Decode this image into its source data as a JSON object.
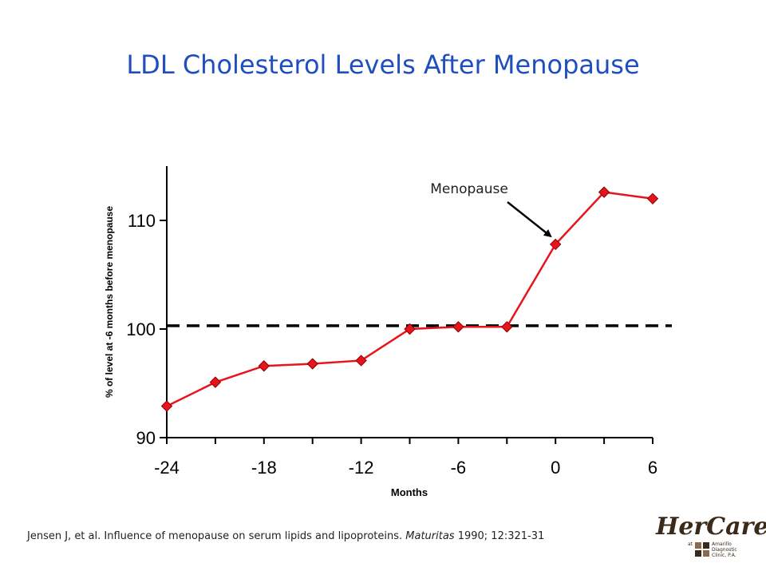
{
  "title": "LDL Cholesterol Levels After Menopause",
  "citation": {
    "authors": "Jensen J, et al. Influence of menopause on serum lipids and lipoproteins. ",
    "journal": "Maturitas",
    "details": " 1990; 12:321-31"
  },
  "logo": {
    "name": "HerCare",
    "at": "at",
    "clinic": "Amarillo Diagnostic Clinic, P.A."
  },
  "chart_data": {
    "type": "line",
    "xlabel": "Months",
    "ylabel": "% of level at -6 months before menopause",
    "xlim": [
      -24,
      6
    ],
    "ylim": [
      90,
      115
    ],
    "x_ticks": [
      -24,
      -18,
      -12,
      -6,
      0,
      6
    ],
    "x_minor_ticks": [
      -21,
      -15,
      -9,
      -3,
      3
    ],
    "y_ticks": [
      90,
      100,
      110
    ],
    "grid": false,
    "series": [
      {
        "color": "#e8141c",
        "marker": "diamond",
        "x": [
          -24,
          -21,
          -18,
          -15,
          -12,
          -9,
          -6,
          -3,
          0,
          3,
          6
        ],
        "y": [
          92.9,
          95.1,
          96.6,
          96.8,
          97.1,
          100.0,
          100.2,
          100.2,
          107.8,
          112.6,
          112.0
        ]
      }
    ],
    "reference_line": {
      "y": 100.3,
      "style": "dashed",
      "color": "#000000"
    },
    "annotation": {
      "text": "Menopause",
      "x": 0,
      "y": 107.8
    }
  }
}
